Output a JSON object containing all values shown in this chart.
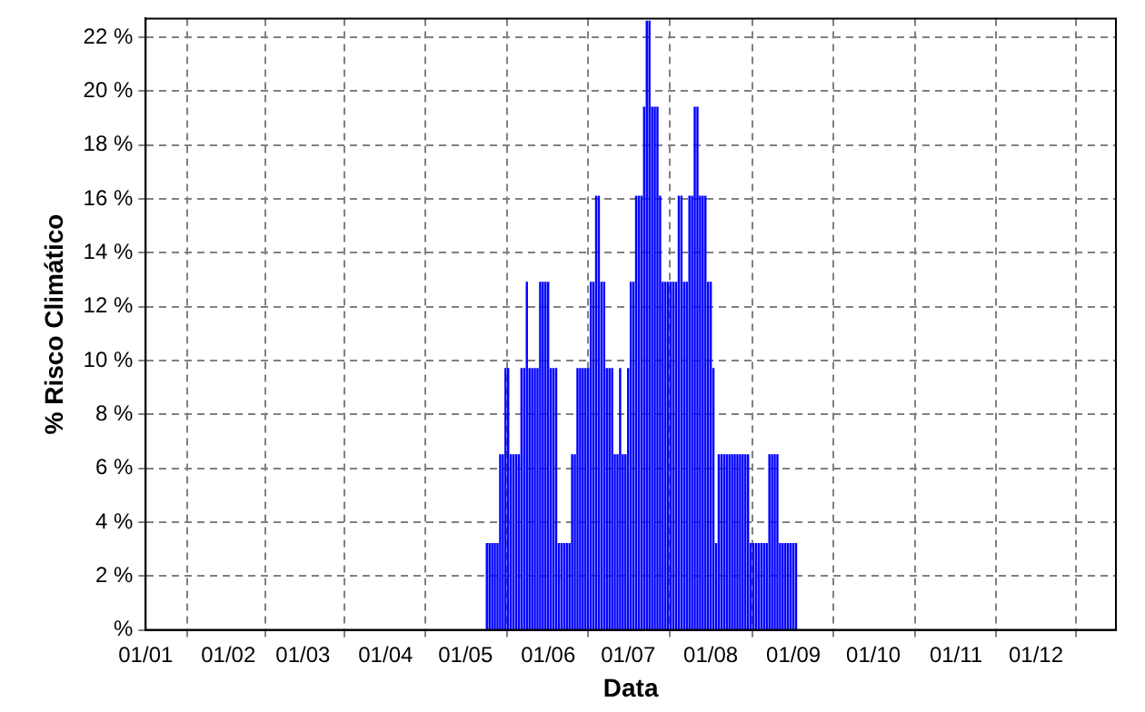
{
  "chart_data": {
    "type": "bar",
    "xlabel": "Data",
    "ylabel": "% Risco Climático",
    "color": "#0000ff",
    "x": [
      "--05-09",
      "--05-10",
      "--05-11",
      "--05-12",
      "--05-13",
      "--05-14",
      "--05-15",
      "--05-16",
      "--05-17",
      "--05-18",
      "--05-19",
      "--05-20",
      "--05-21",
      "--05-22",
      "--05-23",
      "--05-24",
      "--05-25",
      "--05-26",
      "--05-27",
      "--05-28",
      "--05-29",
      "--05-30",
      "--05-31",
      "--06-01",
      "--06-02",
      "--06-03",
      "--06-04",
      "--06-05",
      "--06-06",
      "--06-07",
      "--06-08",
      "--06-09",
      "--06-10",
      "--06-11",
      "--06-12",
      "--06-13",
      "--06-14",
      "--06-15",
      "--06-16",
      "--06-17",
      "--06-18",
      "--06-19",
      "--06-20",
      "--06-21",
      "--06-22",
      "--06-23",
      "--06-24",
      "--06-25",
      "--06-26",
      "--06-27",
      "--06-28",
      "--06-29",
      "--06-30",
      "--07-01",
      "--07-02",
      "--07-03",
      "--07-04",
      "--07-05",
      "--07-06",
      "--07-07",
      "--07-08",
      "--07-09",
      "--07-10",
      "--07-11",
      "--07-12",
      "--07-13",
      "--07-14",
      "--07-15",
      "--07-16",
      "--07-17",
      "--07-18",
      "--07-19",
      "--07-20",
      "--07-21",
      "--07-22",
      "--07-23",
      "--07-24",
      "--07-25",
      "--07-26",
      "--07-27",
      "--07-28",
      "--07-29",
      "--07-30",
      "--07-31",
      "--08-01",
      "--08-02",
      "--08-03",
      "--08-04",
      "--08-05",
      "--08-06",
      "--08-07",
      "--08-08",
      "--08-09",
      "--08-10",
      "--08-11",
      "--08-12",
      "--08-13",
      "--08-14",
      "--08-15",
      "--08-16",
      "--08-17",
      "--08-18",
      "--08-19",
      "--08-20",
      "--08-21",
      "--08-22",
      "--08-23",
      "--08-24",
      "--08-25",
      "--08-26",
      "--08-27",
      "--08-28",
      "--08-29",
      "--08-30",
      "--08-31",
      "--09-01",
      "--09-02"
    ],
    "values": [
      3.2,
      3.2,
      3.2,
      3.2,
      3.2,
      6.5,
      6.5,
      9.7,
      9.7,
      6.5,
      6.5,
      6.5,
      6.5,
      9.7,
      9.7,
      12.9,
      9.7,
      9.7,
      9.7,
      9.7,
      12.9,
      12.9,
      12.9,
      12.9,
      9.7,
      9.7,
      9.7,
      3.2,
      3.2,
      3.2,
      3.2,
      3.2,
      6.5,
      6.5,
      9.7,
      9.7,
      9.7,
      9.7,
      9.7,
      12.9,
      12.9,
      16.1,
      16.1,
      12.9,
      12.9,
      9.7,
      9.7,
      9.7,
      6.5,
      6.5,
      9.7,
      6.5,
      6.5,
      9.7,
      12.9,
      12.9,
      16.1,
      16.1,
      16.1,
      19.4,
      22.6,
      22.6,
      19.4,
      19.4,
      19.4,
      16.1,
      12.9,
      12.9,
      12.9,
      12.9,
      12.9,
      12.9,
      16.1,
      16.1,
      12.9,
      12.9,
      16.1,
      16.1,
      19.4,
      19.4,
      16.1,
      16.1,
      16.1,
      12.9,
      12.9,
      9.7,
      3.2,
      6.5,
      6.5,
      6.5,
      6.5,
      6.5,
      6.5,
      6.5,
      6.5,
      6.5,
      6.5,
      6.5,
      6.5,
      3.2,
      3.2,
      3.2,
      3.2,
      3.2,
      3.2,
      3.2,
      6.5,
      6.5,
      6.5,
      6.5,
      3.2,
      3.2,
      3.2,
      3.2,
      3.2,
      3.2,
      3.2
    ],
    "xlim": [
      "--01-01",
      "--12-31"
    ],
    "xticks": [
      {
        "value": "--01-01",
        "label": "01/01"
      },
      {
        "value": "--02-01",
        "label": "01/02"
      },
      {
        "value": "--03-01",
        "label": "01/03"
      },
      {
        "value": "--04-01",
        "label": "01/04"
      },
      {
        "value": "--05-01",
        "label": "01/05"
      },
      {
        "value": "--06-01",
        "label": "01/06"
      },
      {
        "value": "--07-01",
        "label": "01/07"
      },
      {
        "value": "--08-01",
        "label": "01/08"
      },
      {
        "value": "--09-01",
        "label": "01/09"
      },
      {
        "value": "--10-01",
        "label": "01/10"
      },
      {
        "value": "--11-01",
        "label": "01/11"
      },
      {
        "value": "--12-01",
        "label": "01/12"
      }
    ],
    "ylim": [
      0,
      22.7
    ],
    "yticks": [
      {
        "value": 0,
        "label": "%"
      },
      {
        "value": 2,
        "label": "2 %"
      },
      {
        "value": 4,
        "label": "4 %"
      },
      {
        "value": 6,
        "label": "6 %"
      },
      {
        "value": 8,
        "label": "8 %"
      },
      {
        "value": 10,
        "label": "10 %"
      },
      {
        "value": 12,
        "label": "12 %"
      },
      {
        "value": 14,
        "label": "14 %"
      },
      {
        "value": 16,
        "label": "16 %"
      },
      {
        "value": 18,
        "label": "18 %"
      },
      {
        "value": 20,
        "label": "20 %"
      },
      {
        "value": 22,
        "label": "22 %"
      }
    ],
    "grid": true,
    "legend": false
  }
}
